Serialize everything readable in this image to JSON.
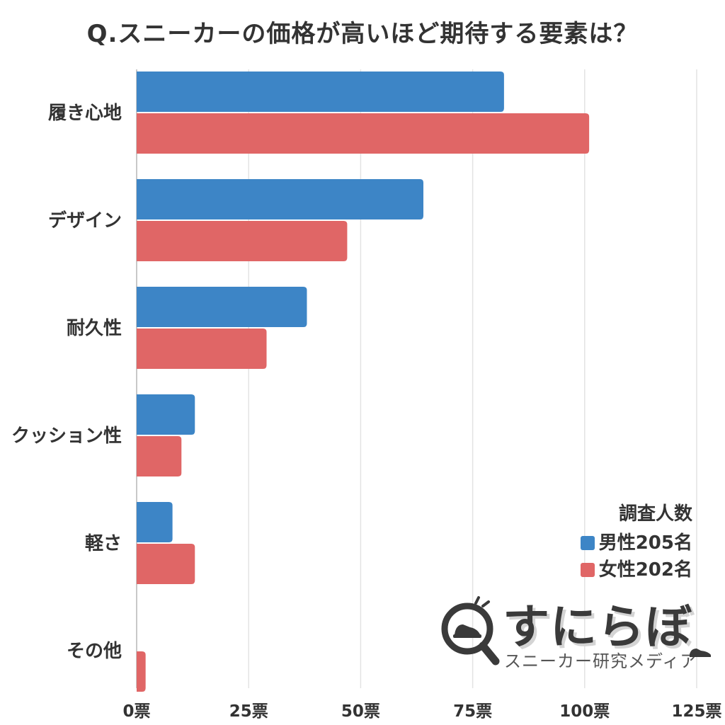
{
  "chart_data": {
    "type": "bar",
    "orientation": "horizontal",
    "title": "Q.スニーカーの価格が高いほど期待する要素は？",
    "categories": [
      "履き心地",
      "デザイン",
      "耐久性",
      "クッション性",
      "軽さ",
      "その他"
    ],
    "series": [
      {
        "name": "男性205名",
        "color": "#3d85c6",
        "values": [
          82,
          64,
          38,
          13,
          8,
          0
        ]
      },
      {
        "name": "女性202名",
        "color": "#e06666",
        "values": [
          101,
          47,
          29,
          10,
          13,
          2
        ]
      }
    ],
    "xlim": [
      0,
      125
    ],
    "xticks": [
      "0票",
      "25票",
      "50票",
      "75票",
      "100票",
      "125票"
    ],
    "grid": true,
    "legend": {
      "title": "調査人数",
      "placement": "right"
    }
  },
  "logo": {
    "brand": "すにらぼ",
    "subtitle": "スニーカー研究メディア"
  }
}
